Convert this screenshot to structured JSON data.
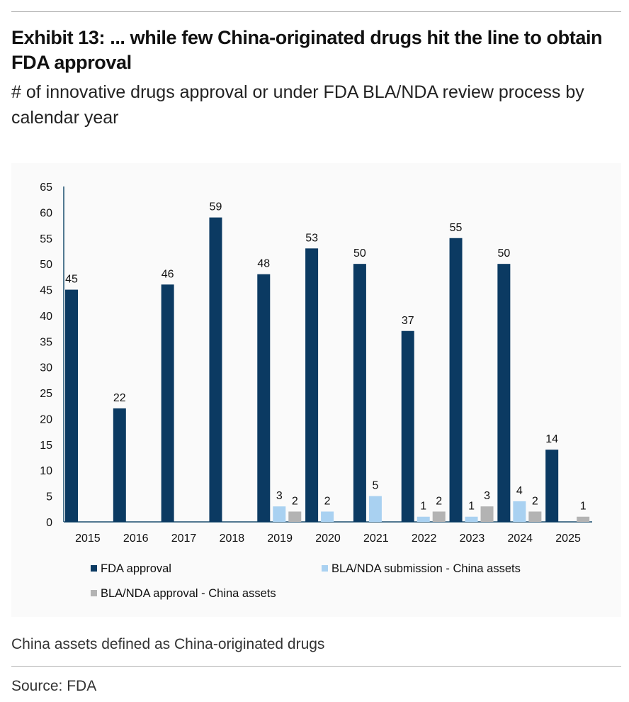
{
  "header": {
    "title": "Exhibit 13: ... while few China-originated drugs hit the line to obtain FDA approval",
    "subtitle": "# of innovative drugs approval or under FDA BLA/NDA review process by calendar year"
  },
  "footer": {
    "note": "China assets defined as China-originated drugs",
    "source": "Source: FDA"
  },
  "chart_data": {
    "type": "bar",
    "title": "",
    "xlabel": "",
    "ylabel": "",
    "categories": [
      "2015",
      "2016",
      "2017",
      "2018",
      "2019",
      "2020",
      "2021",
      "2022",
      "2023",
      "2024",
      "2025"
    ],
    "ylim": [
      0,
      65
    ],
    "yticks": [
      0,
      5,
      10,
      15,
      20,
      25,
      30,
      35,
      40,
      45,
      50,
      55,
      60,
      65
    ],
    "grid": false,
    "legend_position": "bottom",
    "series": [
      {
        "name": "FDA approval",
        "color": "#0b3a62",
        "values": [
          45,
          22,
          46,
          59,
          48,
          53,
          50,
          37,
          55,
          50,
          14
        ],
        "labels": [
          "45",
          "22",
          "46",
          "59",
          "48",
          "53",
          "50",
          "37",
          "55",
          "50",
          "14"
        ]
      },
      {
        "name": "BLA/NDA submission - China assets",
        "color": "#a9d1f1",
        "values": [
          0,
          0,
          0,
          0,
          3,
          2,
          5,
          1,
          1,
          4,
          0
        ],
        "labels": [
          "",
          "",
          "",
          "",
          "3",
          "2",
          "5",
          "1",
          "1",
          "4",
          ""
        ]
      },
      {
        "name": "BLA/NDA approval - China assets",
        "color": "#b3b3b3",
        "values": [
          0,
          0,
          0,
          0,
          2,
          0,
          0,
          2,
          3,
          2,
          1
        ],
        "labels": [
          "",
          "",
          "",
          "",
          "2",
          "",
          "",
          "2",
          "3",
          "2",
          "1"
        ]
      }
    ]
  }
}
